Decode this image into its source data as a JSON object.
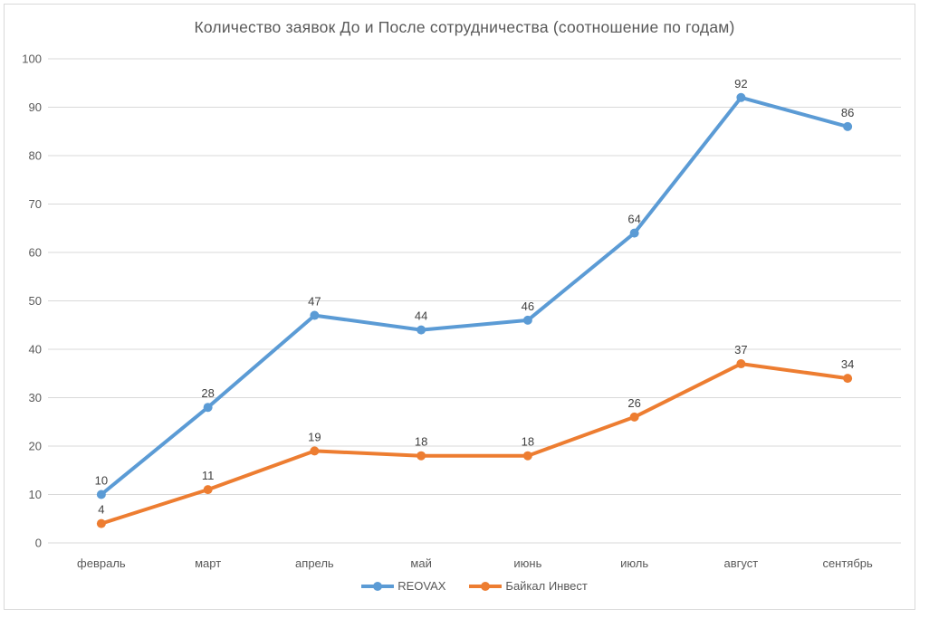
{
  "chart_data": {
    "type": "line",
    "title": "Количество заявок До и После сотрудничества (соотношение по годам)",
    "categories": [
      "февраль",
      "март",
      "апрель",
      "май",
      "июнь",
      "июль",
      "август",
      "сентябрь"
    ],
    "series": [
      {
        "id": "reovax",
        "name": "REOVAX",
        "color": "#5B9BD5",
        "values": [
          10,
          28,
          47,
          44,
          46,
          64,
          92,
          86
        ]
      },
      {
        "id": "baikal-invest",
        "name": "Байкал Инвест",
        "color": "#ED7D31",
        "values": [
          4,
          11,
          19,
          18,
          18,
          26,
          37,
          34
        ]
      }
    ],
    "xlabel": "",
    "ylabel": "",
    "ylim": [
      0,
      100
    ],
    "ytick_step": 10,
    "grid": "horizontal",
    "legend_position": "bottom",
    "data_labels": true,
    "marker": "circle"
  },
  "colors": {
    "background": "#FFFFFF",
    "gridline": "#D9D9D9",
    "chart_border": "#D9D9D9",
    "axis_label": "#595959",
    "data_label": "#404040",
    "title": "#595959"
  }
}
